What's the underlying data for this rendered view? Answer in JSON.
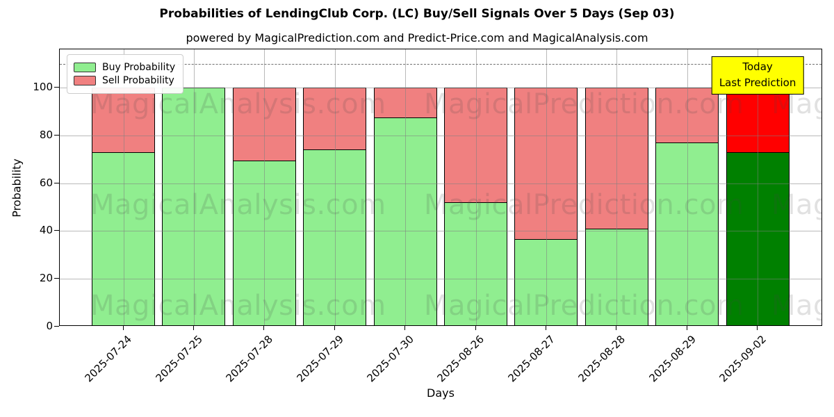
{
  "title": "Probabilities of LendingClub Corp. (LC) Buy/Sell Signals Over 5 Days (Sep 03)",
  "subtitle": "powered by MagicalPrediction.com and Predict-Price.com and MagicalAnalysis.com",
  "legend": {
    "items": [
      {
        "label": "Buy Probability",
        "color": "#90EE90"
      },
      {
        "label": "Sell Probability",
        "color": "#F08080"
      }
    ]
  },
  "annotation": {
    "line1": "Today",
    "line2": "Last Prediction",
    "bg_color": "#FFFF00"
  },
  "watermarks": [
    "MagicalAnalysis.com",
    "MagicalPrediction.com"
  ],
  "chart_data": {
    "type": "bar",
    "stacked": true,
    "title": "Probabilities of LendingClub Corp. (LC) Buy/Sell Signals Over 5 Days (Sep 03)",
    "xlabel": "Days",
    "ylabel": "Probability",
    "categories": [
      "2025-07-24",
      "2025-07-25",
      "2025-07-28",
      "2025-07-29",
      "2025-07-30",
      "2025-08-26",
      "2025-08-27",
      "2025-08-28",
      "2025-08-29",
      "2025-09-02"
    ],
    "series": [
      {
        "name": "Buy Probability",
        "color": "#90EE90",
        "last_bar_color": "#008000",
        "values": [
          73,
          100,
          69.5,
          74,
          87.5,
          52,
          36.5,
          41,
          77,
          73
        ]
      },
      {
        "name": "Sell Probability",
        "color": "#F08080",
        "last_bar_color": "#FF0000",
        "values": [
          27,
          0,
          30.5,
          26,
          12.5,
          48,
          63.5,
          59,
          23,
          26
        ]
      }
    ],
    "yticks": [
      0,
      20,
      40,
      60,
      80,
      100
    ],
    "ylim": [
      0,
      116
    ],
    "dashed_line_y": 110,
    "grid": true,
    "legend_position": "upper-left",
    "bar_edge_color": "#000000"
  }
}
